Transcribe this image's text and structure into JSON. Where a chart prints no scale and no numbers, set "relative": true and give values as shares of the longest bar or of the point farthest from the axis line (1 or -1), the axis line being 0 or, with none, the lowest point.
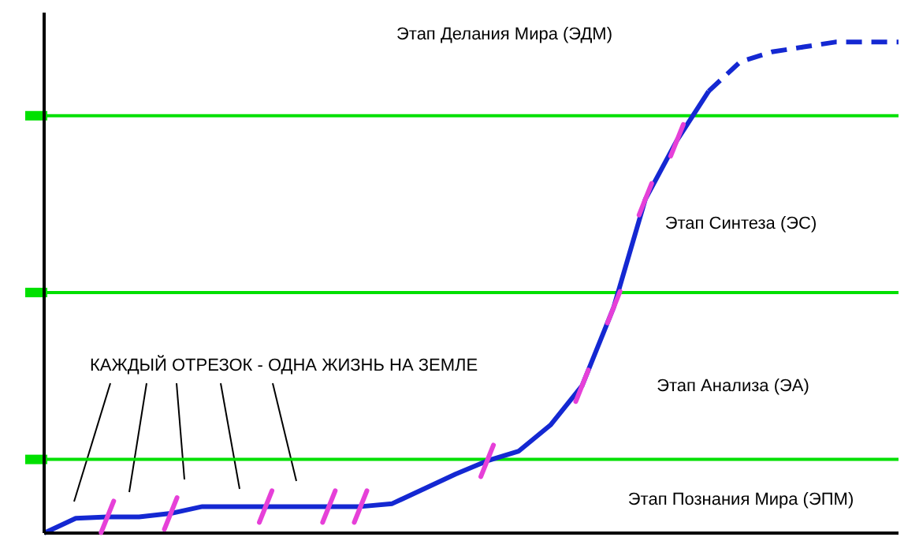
{
  "chart_data": {
    "type": "line",
    "relative": true,
    "categories": [
      null,
      null,
      null,
      null,
      null,
      null,
      null,
      null,
      null,
      null,
      null,
      null,
      null,
      null,
      null,
      null,
      null,
      null,
      null,
      null,
      null,
      null,
      null,
      null,
      null,
      null,
      null,
      null
    ],
    "series": [
      {
        "color": "#1428d2",
        "line_style": "solid",
        "values": [
          0,
          0.03,
          0.033,
          0.033,
          0.04,
          0.054,
          0.054,
          0.054,
          0.054,
          0.054,
          0.054,
          0.06,
          0.09,
          0.12,
          0.147,
          0.167,
          0.22,
          0.3,
          0.46,
          0.68,
          0.8,
          0.9,
          null,
          null,
          null,
          null,
          null,
          null
        ]
      },
      {
        "color": "#1428d2",
        "line_style": "dashed",
        "values": [
          null,
          null,
          null,
          null,
          null,
          null,
          null,
          null,
          null,
          null,
          null,
          null,
          null,
          null,
          null,
          null,
          null,
          null,
          null,
          null,
          null,
          0.9,
          0.96,
          0.98,
          0.99,
          1,
          1,
          1
        ]
      }
    ],
    "ref_lines": [
      {
        "axis": "y",
        "value": 0.85,
        "color": "#00e000"
      },
      {
        "axis": "y",
        "value": 0.49,
        "color": "#00e000"
      },
      {
        "axis": "y",
        "value": 0.15,
        "color": "#00e000"
      }
    ],
    "annotations": [
      "Этап Делания Мира (ЭДМ)",
      "Этап Синтеза (ЭС)",
      "Этап Анализа (ЭА)",
      "Этап Познания Мира (ЭПМ)",
      "КАЖДЫЙ ОТРЕЗОК - ОДНА ЖИЗНЬ НА ЗЕМЛЕ"
    ],
    "legend": false
  }
}
